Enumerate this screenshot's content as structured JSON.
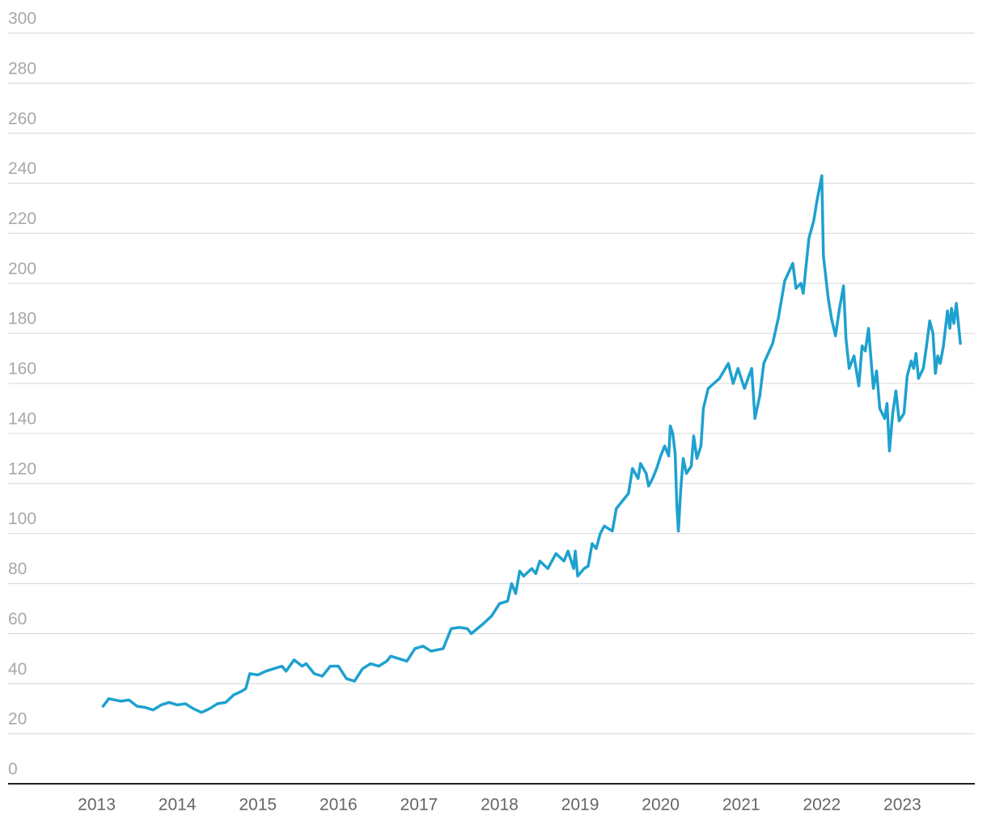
{
  "chart_data": {
    "type": "line",
    "x": [
      2013.08,
      2013.15,
      2013.3,
      2013.4,
      2013.5,
      2013.6,
      2013.7,
      2013.8,
      2013.9,
      2014.0,
      2014.1,
      2014.2,
      2014.3,
      2014.4,
      2014.5,
      2014.6,
      2014.7,
      2014.8,
      2014.85,
      2014.9,
      2015.0,
      2015.1,
      2015.2,
      2015.3,
      2015.35,
      2015.45,
      2015.55,
      2015.6,
      2015.7,
      2015.8,
      2015.9,
      2016.0,
      2016.1,
      2016.2,
      2016.3,
      2016.4,
      2016.5,
      2016.6,
      2016.65,
      2016.75,
      2016.85,
      2016.95,
      2017.05,
      2017.15,
      2017.3,
      2017.4,
      2017.5,
      2017.6,
      2017.65,
      2017.8,
      2017.9,
      2018.0,
      2018.1,
      2018.15,
      2018.2,
      2018.25,
      2018.3,
      2018.4,
      2018.45,
      2018.5,
      2018.6,
      2018.7,
      2018.8,
      2018.85,
      2018.92,
      2018.94,
      2018.97,
      2019.05,
      2019.1,
      2019.15,
      2019.2,
      2019.25,
      2019.3,
      2019.4,
      2019.45,
      2019.55,
      2019.6,
      2019.65,
      2019.72,
      2019.75,
      2019.82,
      2019.85,
      2019.9,
      2019.95,
      2020.0,
      2020.05,
      2020.1,
      2020.12,
      2020.15,
      2020.18,
      2020.2,
      2020.22,
      2020.25,
      2020.28,
      2020.32,
      2020.38,
      2020.41,
      2020.45,
      2020.5,
      2020.53,
      2020.59,
      2020.73,
      2020.84,
      2020.9,
      2020.96,
      2021.04,
      2021.13,
      2021.17,
      2021.23,
      2021.28,
      2021.39,
      2021.46,
      2021.54,
      2021.64,
      2021.68,
      2021.74,
      2021.77,
      2021.84,
      2021.9,
      2021.94,
      2022.0,
      2022.02,
      2022.08,
      2022.12,
      2022.17,
      2022.22,
      2022.27,
      2022.3,
      2022.34,
      2022.4,
      2022.46,
      2022.5,
      2022.54,
      2022.58,
      2022.64,
      2022.68,
      2022.72,
      2022.78,
      2022.81,
      2022.84,
      2022.88,
      2022.92,
      2022.96,
      2023.02,
      2023.06,
      2023.11,
      2023.14,
      2023.17,
      2023.2,
      2023.26,
      2023.3,
      2023.34,
      2023.38,
      2023.41,
      2023.44,
      2023.47,
      2023.51,
      2023.56,
      2023.59,
      2023.61,
      2023.64,
      2023.67,
      2023.72
    ],
    "values": [
      31,
      34,
      33,
      33.5,
      31,
      30.5,
      29.5,
      31.5,
      32.5,
      31.5,
      32,
      30,
      28.5,
      30,
      32,
      32.5,
      35.5,
      37,
      38,
      44,
      43.5,
      45,
      46,
      47,
      45,
      49.5,
      47,
      48,
      44,
      43,
      47,
      47,
      42,
      41,
      46,
      48,
      47,
      49,
      51,
      50,
      49,
      54,
      55,
      53,
      54,
      62,
      62.5,
      62,
      60,
      64,
      67,
      72,
      73,
      80,
      76,
      85,
      83,
      86,
      84,
      89,
      86,
      92,
      89,
      93,
      86,
      93,
      83,
      86,
      87,
      96,
      94,
      100,
      103,
      101,
      110,
      114,
      116,
      126,
      122,
      128,
      124,
      119,
      122,
      126,
      131,
      135,
      131,
      143,
      140,
      132,
      112,
      101,
      118,
      130,
      124,
      127,
      139,
      130,
      135,
      150,
      158,
      162,
      168,
      160,
      166,
      158,
      166,
      146,
      155,
      168,
      176,
      186,
      201,
      208,
      198,
      200,
      196,
      218,
      225,
      233,
      243,
      211,
      194,
      186,
      179,
      190,
      199,
      178,
      166,
      171,
      159,
      175,
      173,
      182,
      158,
      165,
      150,
      146,
      152,
      133,
      148,
      157,
      145,
      148,
      163,
      169,
      166,
      172,
      162,
      166,
      175,
      185,
      180,
      164,
      171,
      168,
      175,
      189,
      182,
      190,
      184,
      192,
      176
    ],
    "color": "#1ea1cf",
    "xlim": [
      2011.9,
      2023.9
    ],
    "xticks": [
      2013,
      2014,
      2015,
      2016,
      2017,
      2018,
      2019,
      2020,
      2021,
      2022,
      2023
    ],
    "ylim": [
      0,
      300
    ],
    "yticks": [
      0,
      20,
      40,
      60,
      80,
      100,
      120,
      140,
      160,
      180,
      200,
      220,
      240,
      260,
      280,
      300
    ],
    "grid": true
  }
}
